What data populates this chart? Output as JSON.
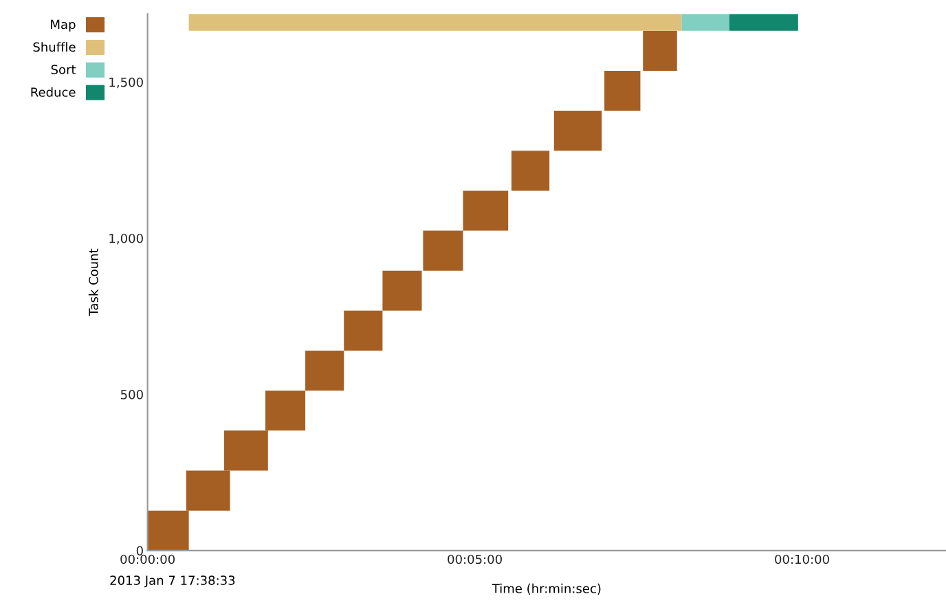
{
  "chart_data": {
    "type": "bar",
    "orientation": "horizontal",
    "xlabel": "Time (hr:min:sec)",
    "ylabel": "Task Count",
    "annotations": [
      "2013 Jan 7 17:38:33"
    ],
    "xlim": [
      0,
      12.2
    ],
    "xticks": [
      {
        "value": 0,
        "label": "00:00:00"
      },
      {
        "value": 5,
        "label": "00:05:00"
      },
      {
        "value": 10,
        "label": "00:10:00"
      }
    ],
    "ylim": [
      0,
      1718
    ],
    "yticks": [
      0,
      500,
      {
        "value": 1000,
        "label": "1,000"
      },
      {
        "value": 1500,
        "label": "1,500"
      }
    ],
    "grid": false,
    "legend": "top left",
    "series": [
      {
        "name": "Map",
        "color": "#a65f22",
        "x": [
          64,
          192,
          320,
          448,
          576,
          704,
          832,
          960,
          1088,
          1216,
          1344,
          1472,
          1600
        ],
        "base": [
          0,
          0.59,
          1.17,
          1.8,
          2.41,
          3.0,
          3.59,
          4.21,
          4.82,
          5.56,
          6.21,
          6.98,
          7.57
        ],
        "values": [
          0.63,
          0.67,
          0.67,
          0.61,
          0.59,
          0.59,
          0.6,
          0.61,
          0.69,
          0.58,
          0.73,
          0.55,
          0.52
        ]
      },
      {
        "name": "Shuffle",
        "color": "#dfc07a",
        "x": [
          1690
        ],
        "base": [
          0.63
        ],
        "values": [
          7.53
        ]
      },
      {
        "name": "Sort",
        "color": "#80cfc0",
        "x": [
          1690
        ],
        "base": [
          8.16
        ],
        "values": [
          0.73
        ]
      },
      {
        "name": "Reduce",
        "color": "#12876e",
        "x": [
          1690
        ],
        "base": [
          8.89
        ],
        "values": [
          1.05
        ]
      }
    ]
  }
}
